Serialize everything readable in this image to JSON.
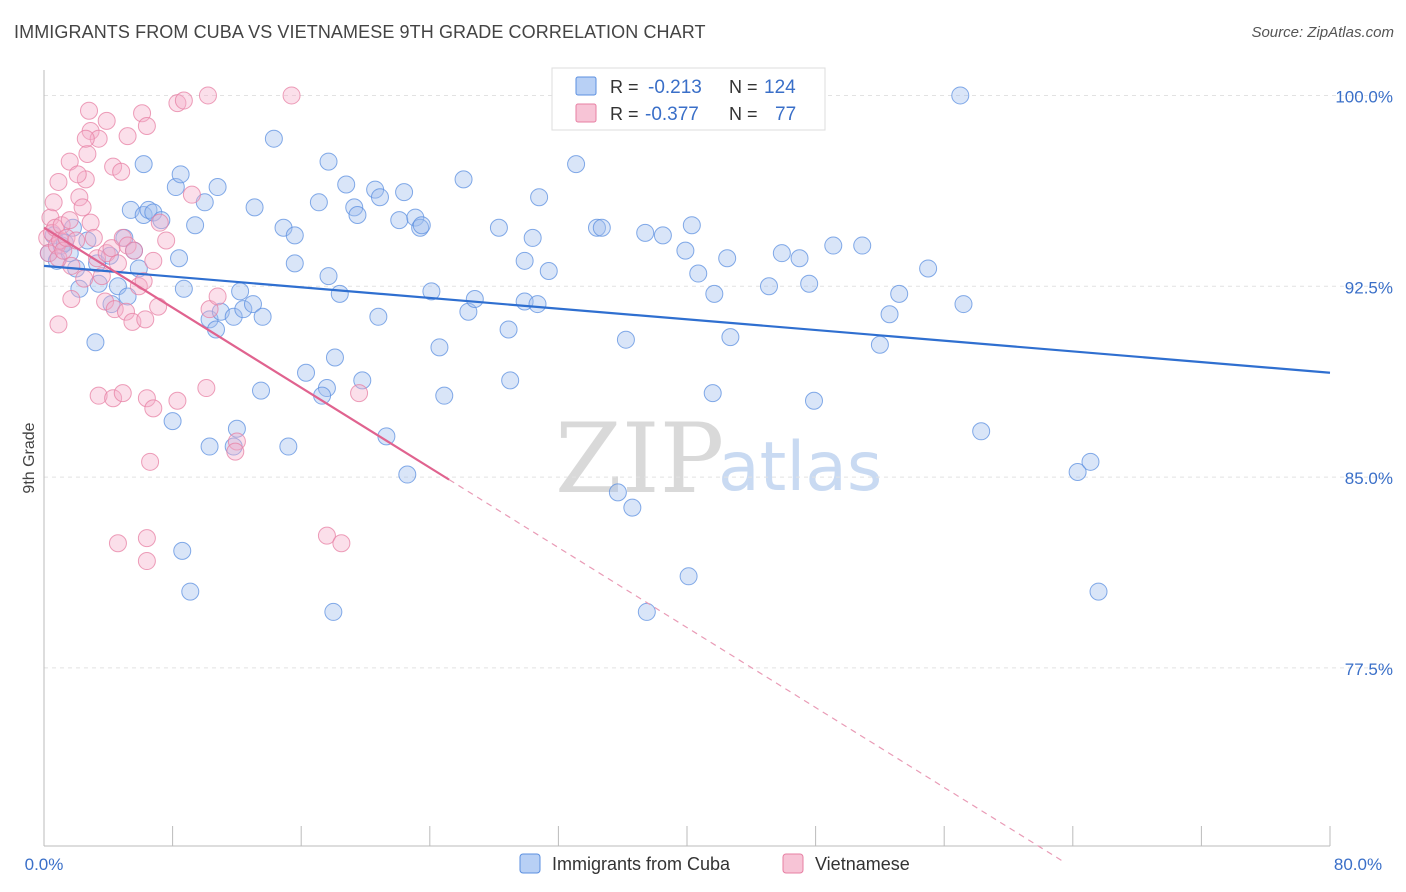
{
  "header": {
    "title": "IMMIGRANTS FROM CUBA VS VIETNAMESE 9TH GRADE CORRELATION CHART",
    "source": "Source: ZipAtlas.com"
  },
  "watermark": {
    "zip": "ZIP",
    "atlas": "atlas"
  },
  "legend_box": {
    "rows": [
      {
        "r_label": "R =",
        "r_value": "-0.213",
        "n_label": "N =",
        "n_value": "124",
        "color": "#5b8fe0"
      },
      {
        "r_label": "R =",
        "r_value": "-0.377",
        "n_label": "N =",
        "n_value": "77",
        "color": "#e77fa3"
      }
    ]
  },
  "bottom_legend": [
    {
      "label": "Immigrants from Cuba",
      "color": "#5b8fe0"
    },
    {
      "label": "Vietnamese",
      "color": "#e77fa3"
    }
  ],
  "chart_data": {
    "type": "scatter",
    "ylabel": "9th Grade",
    "xlim": [
      0,
      80
    ],
    "ylim": [
      70.5,
      101
    ],
    "x_tick_labels": [
      "0.0%",
      "80.0%"
    ],
    "y_ticks": [
      100.0,
      92.5,
      85.0,
      77.5
    ],
    "y_tick_labels": [
      "100.0%",
      "92.5%",
      "85.0%",
      "77.5%"
    ],
    "grid": true,
    "series": [
      {
        "name": "Immigrants from Cuba",
        "color": "#5b8fe0",
        "trend": {
          "x": [
            0,
            80
          ],
          "y": [
            93.3,
            89.1
          ],
          "style": "solid"
        },
        "points": [
          [
            0.3,
            93.8
          ],
          [
            0.6,
            94.5
          ],
          [
            0.8,
            93.5
          ],
          [
            1.1,
            94.1
          ],
          [
            1.3,
            94.2
          ],
          [
            1.6,
            93.8
          ],
          [
            2.0,
            93.2
          ],
          [
            2.7,
            94.3
          ],
          [
            1.8,
            94.8
          ],
          [
            3.3,
            93.4
          ],
          [
            4.1,
            93.7
          ],
          [
            5.0,
            94.4
          ],
          [
            5.6,
            93.9
          ],
          [
            5.9,
            93.2
          ],
          [
            3.4,
            92.6
          ],
          [
            4.6,
            92.5
          ],
          [
            2.2,
            92.4
          ],
          [
            5.2,
            92.1
          ],
          [
            4.2,
            91.8
          ],
          [
            3.2,
            90.3
          ],
          [
            5.4,
            95.5
          ],
          [
            6.2,
            95.3
          ],
          [
            6.5,
            95.5
          ],
          [
            6.8,
            95.4
          ],
          [
            7.3,
            95.1
          ],
          [
            6.2,
            97.3
          ],
          [
            8.2,
            96.4
          ],
          [
            8.5,
            96.9
          ],
          [
            9.4,
            94.9
          ],
          [
            10.0,
            95.8
          ],
          [
            10.8,
            96.4
          ],
          [
            13.1,
            95.6
          ],
          [
            14.3,
            98.3
          ],
          [
            14.9,
            94.8
          ],
          [
            15.6,
            94.5
          ],
          [
            17.1,
            95.8
          ],
          [
            17.7,
            97.4
          ],
          [
            18.8,
            96.5
          ],
          [
            19.3,
            95.6
          ],
          [
            19.5,
            95.3
          ],
          [
            20.6,
            96.3
          ],
          [
            20.9,
            96.0
          ],
          [
            22.1,
            95.1
          ],
          [
            22.4,
            96.2
          ],
          [
            23.1,
            95.2
          ],
          [
            23.4,
            94.8
          ],
          [
            23.5,
            94.9
          ],
          [
            26.1,
            96.7
          ],
          [
            28.3,
            94.8
          ],
          [
            30.4,
            94.4
          ],
          [
            30.8,
            96.0
          ],
          [
            33.1,
            97.3
          ],
          [
            34.4,
            94.8
          ],
          [
            34.7,
            94.8
          ],
          [
            37.4,
            94.6
          ],
          [
            38.5,
            94.5
          ],
          [
            40.3,
            94.9
          ],
          [
            41.0,
            100.0
          ],
          [
            57.0,
            100.0
          ],
          [
            8.4,
            93.6
          ],
          [
            8.7,
            92.4
          ],
          [
            10.3,
            91.2
          ],
          [
            10.7,
            90.8
          ],
          [
            11.0,
            91.5
          ],
          [
            11.8,
            91.3
          ],
          [
            12.2,
            92.3
          ],
          [
            12.4,
            91.6
          ],
          [
            13.0,
            91.8
          ],
          [
            13.6,
            91.3
          ],
          [
            15.6,
            93.4
          ],
          [
            17.7,
            92.9
          ],
          [
            18.4,
            92.2
          ],
          [
            20.8,
            91.3
          ],
          [
            24.1,
            92.3
          ],
          [
            26.4,
            91.5
          ],
          [
            26.8,
            92.0
          ],
          [
            28.9,
            90.8
          ],
          [
            29.9,
            91.9
          ],
          [
            30.7,
            91.8
          ],
          [
            29.9,
            93.5
          ],
          [
            31.4,
            93.1
          ],
          [
            36.2,
            90.4
          ],
          [
            39.9,
            93.9
          ],
          [
            40.7,
            93.0
          ],
          [
            41.7,
            92.2
          ],
          [
            42.5,
            93.6
          ],
          [
            42.7,
            90.5
          ],
          [
            45.1,
            92.5
          ],
          [
            45.9,
            93.8
          ],
          [
            47.0,
            93.6
          ],
          [
            47.6,
            92.6
          ],
          [
            49.1,
            94.1
          ],
          [
            50.9,
            94.1
          ],
          [
            52.6,
            91.4
          ],
          [
            52.0,
            90.2
          ],
          [
            53.2,
            92.2
          ],
          [
            55.0,
            93.2
          ],
          [
            57.2,
            91.8
          ],
          [
            8.0,
            87.2
          ],
          [
            10.3,
            86.2
          ],
          [
            11.8,
            86.2
          ],
          [
            12.0,
            86.9
          ],
          [
            13.5,
            88.4
          ],
          [
            15.2,
            86.2
          ],
          [
            16.3,
            89.1
          ],
          [
            17.6,
            88.5
          ],
          [
            17.3,
            88.2
          ],
          [
            18.1,
            89.7
          ],
          [
            19.8,
            88.8
          ],
          [
            21.3,
            86.6
          ],
          [
            22.6,
            85.1
          ],
          [
            24.6,
            90.1
          ],
          [
            24.9,
            88.2
          ],
          [
            29.0,
            88.8
          ],
          [
            41.6,
            88.3
          ],
          [
            47.9,
            88.0
          ],
          [
            58.3,
            86.8
          ],
          [
            64.3,
            85.2
          ],
          [
            65.1,
            85.6
          ],
          [
            8.6,
            82.1
          ],
          [
            9.1,
            80.5
          ],
          [
            18.0,
            79.7
          ],
          [
            35.7,
            84.4
          ],
          [
            36.6,
            83.8
          ],
          [
            37.5,
            79.7
          ],
          [
            40.1,
            81.1
          ],
          [
            65.6,
            80.5
          ]
        ]
      },
      {
        "name": "Vietnamese",
        "color": "#e77fa3",
        "trend": {
          "x": [
            0,
            25.2
          ],
          "y": [
            94.8,
            84.9
          ],
          "x_dash_end": 63.5,
          "style": "solid-then-dashed"
        },
        "points": [
          [
            0.2,
            94.4
          ],
          [
            0.3,
            93.8
          ],
          [
            0.4,
            95.2
          ],
          [
            0.5,
            94.6
          ],
          [
            0.6,
            95.8
          ],
          [
            0.7,
            94.8
          ],
          [
            0.8,
            94.1
          ],
          [
            0.9,
            93.6
          ],
          [
            1.0,
            94.3
          ],
          [
            1.1,
            94.9
          ],
          [
            1.2,
            93.9
          ],
          [
            1.4,
            94.4
          ],
          [
            1.6,
            95.1
          ],
          [
            1.7,
            93.3
          ],
          [
            2.0,
            94.3
          ],
          [
            2.2,
            96.0
          ],
          [
            2.4,
            95.6
          ],
          [
            2.6,
            96.7
          ],
          [
            2.9,
            95.0
          ],
          [
            3.1,
            94.4
          ],
          [
            3.3,
            93.6
          ],
          [
            3.6,
            92.9
          ],
          [
            3.9,
            93.8
          ],
          [
            4.2,
            94.0
          ],
          [
            4.6,
            93.4
          ],
          [
            4.9,
            94.4
          ],
          [
            5.2,
            94.1
          ],
          [
            5.6,
            93.9
          ],
          [
            5.9,
            92.5
          ],
          [
            6.2,
            92.7
          ],
          [
            6.8,
            93.5
          ],
          [
            7.2,
            95.0
          ],
          [
            7.6,
            94.3
          ],
          [
            0.9,
            96.6
          ],
          [
            1.6,
            97.4
          ],
          [
            2.1,
            96.9
          ],
          [
            2.7,
            97.7
          ],
          [
            2.9,
            98.6
          ],
          [
            3.4,
            98.3
          ],
          [
            3.9,
            99.0
          ],
          [
            4.3,
            97.2
          ],
          [
            4.8,
            97.0
          ],
          [
            5.2,
            98.4
          ],
          [
            6.1,
            99.3
          ],
          [
            6.4,
            98.8
          ],
          [
            2.8,
            99.4
          ],
          [
            2.6,
            98.3
          ],
          [
            8.3,
            99.7
          ],
          [
            8.7,
            99.8
          ],
          [
            10.2,
            100.0
          ],
          [
            15.4,
            100.0
          ],
          [
            9.2,
            96.1
          ],
          [
            0.9,
            91.0
          ],
          [
            1.7,
            92.0
          ],
          [
            2.5,
            92.8
          ],
          [
            3.8,
            91.9
          ],
          [
            4.4,
            91.6
          ],
          [
            5.1,
            91.5
          ],
          [
            5.5,
            91.1
          ],
          [
            6.3,
            91.2
          ],
          [
            7.1,
            91.7
          ],
          [
            10.3,
            91.6
          ],
          [
            10.8,
            92.1
          ],
          [
            3.4,
            88.2
          ],
          [
            4.3,
            88.1
          ],
          [
            4.9,
            88.3
          ],
          [
            6.4,
            88.1
          ],
          [
            6.8,
            87.7
          ],
          [
            8.3,
            88.0
          ],
          [
            10.1,
            88.5
          ],
          [
            19.6,
            88.3
          ],
          [
            6.6,
            85.6
          ],
          [
            12.0,
            86.4
          ],
          [
            11.9,
            86.0
          ],
          [
            4.6,
            82.4
          ],
          [
            6.4,
            82.6
          ],
          [
            6.4,
            81.7
          ],
          [
            17.6,
            82.7
          ],
          [
            18.5,
            82.4
          ]
        ]
      }
    ]
  }
}
